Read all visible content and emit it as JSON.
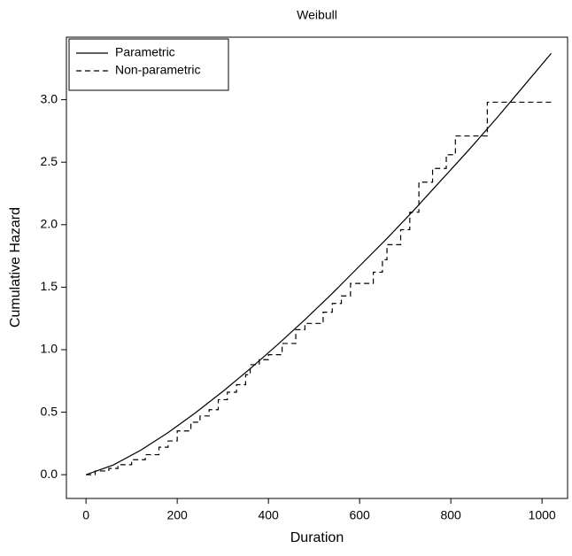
{
  "chart_data": {
    "type": "line",
    "title": "Weibull",
    "xlabel": "Duration",
    "ylabel": "Cumulative Hazard",
    "xlim": [
      -43,
      1056
    ],
    "ylim": [
      -0.19,
      3.5
    ],
    "xticks": [
      0,
      200,
      400,
      600,
      800,
      1000
    ],
    "yticks": [
      {
        "value": 0,
        "label": "0.0"
      },
      0.5,
      {
        "value": 1,
        "label": "1.0"
      },
      1.5,
      {
        "value": 2,
        "label": "2.0"
      },
      2.5,
      {
        "value": 3,
        "label": "3.0"
      }
    ],
    "legend": "upper left",
    "series": [
      {
        "name": "Parametric",
        "color": "#000000",
        "style": "solid",
        "drawstyle": "line",
        "x": [
          0,
          60,
          120,
          180,
          240,
          300,
          360,
          420,
          480,
          540,
          600,
          660,
          720,
          780,
          840,
          900,
          960,
          1020
        ],
        "values": [
          0,
          0.078,
          0.196,
          0.337,
          0.495,
          0.666,
          0.848,
          1.04,
          1.24,
          1.45,
          1.67,
          1.89,
          2.12,
          2.36,
          2.6,
          2.85,
          3.11,
          3.37
        ]
      },
      {
        "name": "Non-parametric",
        "color": "#000000",
        "style": "dashed",
        "drawstyle": "steps-post",
        "x": [
          0,
          20,
          50,
          70,
          100,
          130,
          160,
          180,
          200,
          230,
          250,
          270,
          290,
          310,
          330,
          350,
          360,
          380,
          400,
          430,
          460,
          480,
          520,
          540,
          560,
          580,
          610,
          630,
          650,
          660,
          690,
          710,
          730,
          760,
          790,
          810,
          880,
          1020
        ],
        "values": [
          0,
          0.03,
          0.05,
          0.08,
          0.12,
          0.16,
          0.22,
          0.27,
          0.35,
          0.42,
          0.47,
          0.52,
          0.6,
          0.66,
          0.72,
          0.8,
          0.88,
          0.92,
          0.96,
          1.05,
          1.16,
          1.21,
          1.3,
          1.37,
          1.43,
          1.53,
          1.53,
          1.62,
          1.72,
          1.84,
          1.96,
          2.1,
          2.34,
          2.45,
          2.56,
          2.71,
          2.98,
          2.98
        ]
      }
    ]
  }
}
